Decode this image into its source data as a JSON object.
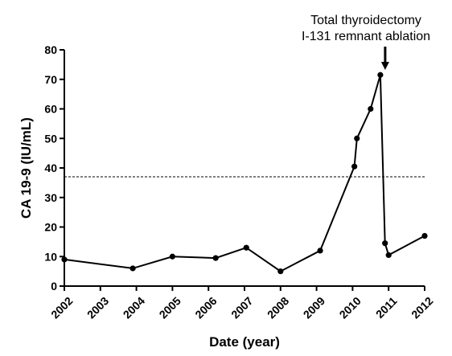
{
  "chart_data": {
    "type": "line",
    "xlabel": "Date (year)",
    "ylabel": "CA 19-9 (IU/mL)",
    "x_ticks": [
      "2002",
      "2003",
      "2004",
      "2005",
      "2006",
      "2007",
      "2008",
      "2009",
      "2010",
      "2011",
      "2012"
    ],
    "y_ticks": [
      "0",
      "10",
      "20",
      "30",
      "40",
      "50",
      "60",
      "70",
      "80"
    ],
    "xlim": [
      2002,
      2012
    ],
    "ylim": [
      0,
      80
    ],
    "grid": false,
    "series": [
      {
        "x": [
          2002.0,
          2003.9,
          2005.0,
          2006.2,
          2007.05,
          2008.0,
          2009.1,
          2010.05,
          2010.12,
          2010.5,
          2010.77,
          2010.9,
          2011.0,
          2012.0
        ],
        "y": [
          9,
          6,
          10,
          9.5,
          13,
          5,
          12,
          40.5,
          50,
          60,
          71.5,
          14.5,
          10.5,
          17
        ]
      }
    ],
    "reference_line": {
      "y": 37,
      "style": "dashed"
    },
    "annotation": {
      "lines": [
        "Total thyroidectomy",
        "I-131 remnant ablation"
      ],
      "x": 2010.77,
      "arrow": "down"
    }
  }
}
